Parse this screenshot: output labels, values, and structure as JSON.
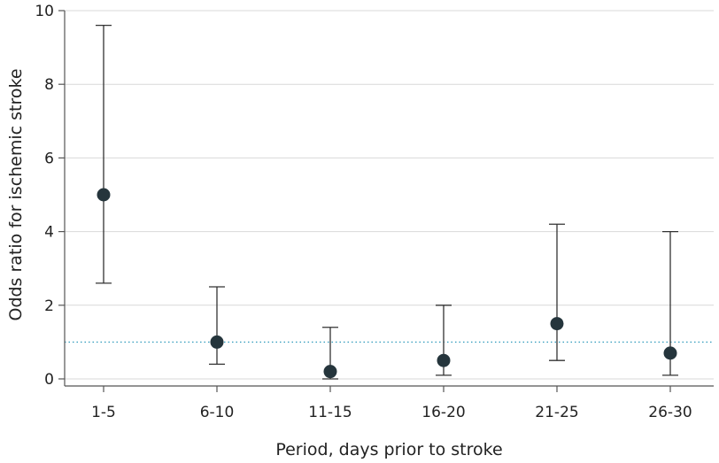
{
  "chart_data": {
    "type": "scatter",
    "title": "",
    "xlabel": "Period, days prior to stroke",
    "ylabel": "Odds ratio for ischemic stroke",
    "categories": [
      "1-5",
      "6-10",
      "11-15",
      "16-20",
      "21-25",
      "26-30"
    ],
    "series": [
      {
        "name": "Odds ratio",
        "values": [
          5.0,
          1.0,
          0.2,
          0.5,
          1.5,
          0.7
        ],
        "ci_lower": [
          2.6,
          0.4,
          0.0,
          0.1,
          0.5,
          0.1
        ],
        "ci_upper": [
          9.6,
          2.5,
          1.4,
          2.0,
          4.2,
          4.0
        ]
      }
    ],
    "ylim": [
      0,
      10
    ],
    "yticks": [
      0,
      2,
      4,
      6,
      8,
      10
    ],
    "reference_line": 1,
    "grid": true,
    "colors": {
      "point": "#25353c",
      "whisker": "#333333",
      "reference": "#3a9fbf",
      "grid": "#d9d9d9"
    }
  }
}
